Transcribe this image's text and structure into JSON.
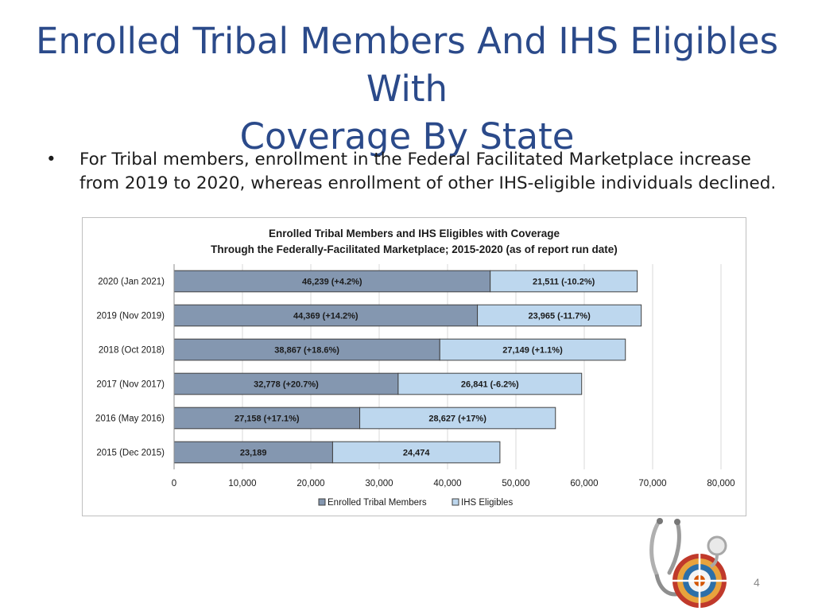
{
  "slide": {
    "title_line1": "Enrolled Tribal Members And IHS Eligibles With",
    "title_line2": "Coverage By State",
    "bullet_text": "For Tribal members, enrollment in the Federal Facilitated Marketplace increase from 2019 to 2020, whereas enrollment of other IHS-eligible individuals declined.",
    "bullet_symbol": "•",
    "page_number": "4",
    "logo_icon": "stethoscope-medicine-wheel-logo"
  },
  "colors": {
    "title": "#2b4a8a",
    "tribal": "#8497b0",
    "ihs": "#bdd7ee",
    "bar_border": "#404040",
    "grid": "#d9d9d9"
  },
  "chart_data": {
    "type": "bar",
    "orientation": "horizontal",
    "stacked": true,
    "title_line1": "Enrolled Tribal Members and IHS Eligibles with Coverage",
    "title_line2": "Through the Federally-Facilitated Marketplace; 2015-2020 (as of report run date)",
    "categories": [
      "2020 (Jan 2021)",
      "2019 (Nov 2019)",
      "2018 (Oct 2018)",
      "2017 (Nov 2017)",
      "2016 (May 2016)",
      "2015 (Dec 2015)"
    ],
    "series": [
      {
        "name": "Enrolled Tribal Members",
        "values": [
          46239,
          44369,
          38867,
          32778,
          27158,
          23189
        ],
        "labels": [
          "46,239 (+4.2%)",
          "44,369 (+14.2%)",
          "38,867 (+18.6%)",
          "32,778  (+20.7%)",
          "27,158  (+17.1%)",
          "23,189"
        ]
      },
      {
        "name": "IHS Eligibles",
        "values": [
          21511,
          23965,
          27149,
          26841,
          28627,
          24474
        ],
        "labels": [
          "21,511 (-10.2%)",
          "23,965 (-11.7%)",
          "27,149 (+1.1%)",
          "26,841  (-6.2%)",
          "28,627  (+17%)",
          "24,474"
        ]
      }
    ],
    "xlim": [
      0,
      80000
    ],
    "xticks": [
      0,
      10000,
      20000,
      30000,
      40000,
      50000,
      60000,
      70000,
      80000
    ],
    "xtick_labels": [
      "0",
      "10,000",
      "20,000",
      "30,000",
      "40,000",
      "50,000",
      "60,000",
      "70,000",
      "80,000"
    ],
    "grid": true,
    "legend_position": "bottom"
  }
}
